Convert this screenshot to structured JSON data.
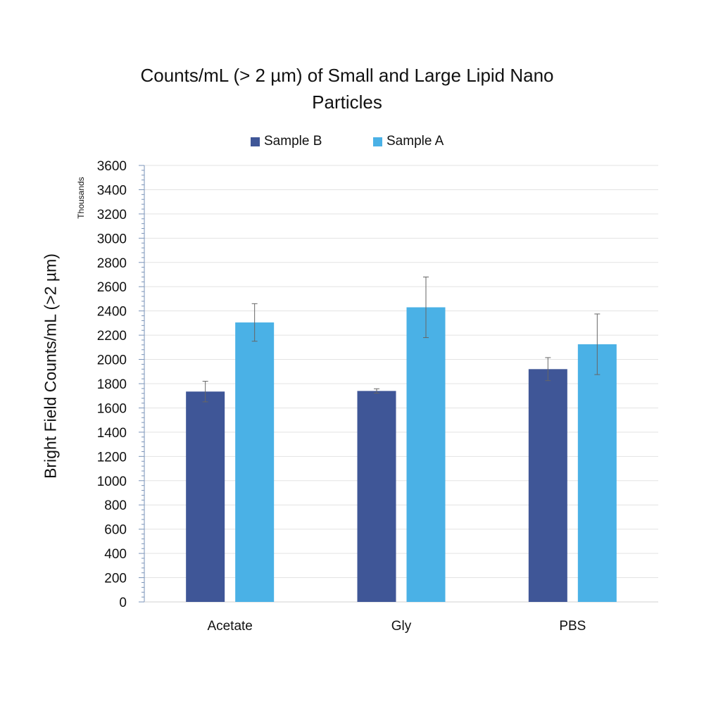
{
  "chart_data": {
    "type": "bar",
    "title_line1": "Counts/mL (> 2 µm) of Small and Large Lipid Nano",
    "title_line2": "Particles",
    "ylabel": "Bright Field Counts/mL (>2 µm)",
    "unit_label": "Thousands",
    "xlabel": "",
    "categories": [
      "Acetate",
      "Gly",
      "PBS"
    ],
    "ylim": [
      0,
      3600
    ],
    "ytick_step": 200,
    "yticks": [
      "0",
      "200",
      "400",
      "600",
      "800",
      "1000",
      "1200",
      "1400",
      "1600",
      "1800",
      "2000",
      "2200",
      "2400",
      "2600",
      "2800",
      "3000",
      "3200",
      "3400",
      "3600"
    ],
    "grid": true,
    "legend_position": "top",
    "series": [
      {
        "name": "Sample B",
        "color": "#3F5697",
        "values": [
          1735,
          1740,
          1920
        ],
        "errors": [
          85,
          18,
          95
        ]
      },
      {
        "name": "Sample A",
        "color": "#4AB1E6",
        "values": [
          2305,
          2430,
          2125
        ],
        "errors": [
          155,
          250,
          250
        ]
      }
    ]
  }
}
